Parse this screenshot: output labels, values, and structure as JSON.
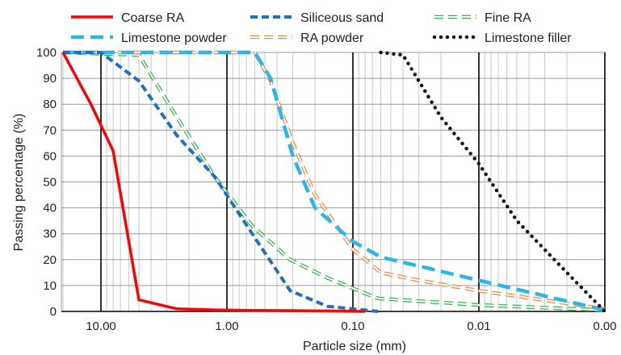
{
  "chart_data": {
    "type": "line",
    "title": "",
    "xlabel": "Particle size (mm)",
    "ylabel": "Passing percentage (%)",
    "x_scale": "log",
    "x_direction": "descending",
    "xlim": [
      20,
      0.001
    ],
    "ylim": [
      0,
      100
    ],
    "x_ticks": [
      10,
      1,
      0.1,
      0.01,
      0.001
    ],
    "x_tick_labels": [
      "10.00",
      "1.00",
      "0.10",
      "0.01",
      "0.00"
    ],
    "y_ticks": [
      0,
      10,
      20,
      30,
      40,
      50,
      60,
      70,
      80,
      90,
      100
    ],
    "y_tick_labels": [
      "0",
      "10",
      "20",
      "30",
      "40",
      "50",
      "60",
      "70",
      "80",
      "90",
      "100"
    ],
    "grid": true,
    "legend_position": "top",
    "series": [
      {
        "name": "Coarse RA",
        "color": "#ff0000",
        "style": "solid",
        "x": [
          20,
          12,
          8,
          5,
          2.5,
          1.25,
          0.63,
          0.315,
          0.16,
          0.08
        ],
        "y": [
          100,
          80,
          62,
          4.5,
          1,
          0.6,
          0.4,
          0.3,
          0.2,
          0
        ]
      },
      {
        "name": "Siliceous sand",
        "color": "#1f6fc4",
        "style": "dash",
        "x": [
          20,
          10,
          5,
          2.5,
          1.25,
          0.63,
          0.315,
          0.16,
          0.08,
          0.063
        ],
        "y": [
          100,
          100,
          89,
          68,
          52,
          30,
          8,
          2,
          0.5,
          0
        ]
      },
      {
        "name": "Fine RA",
        "color": "#2db84a",
        "style": "hollow-dash",
        "x": [
          20,
          5,
          2.5,
          1.25,
          0.63,
          0.315,
          0.16,
          0.08,
          0.063,
          0.01,
          0.001
        ],
        "y": [
          100,
          99,
          75,
          52,
          33,
          20,
          13,
          7,
          5,
          2.5,
          0.5
        ]
      },
      {
        "name": "Limestone powder",
        "color": "#29b6ec",
        "style": "long-dash",
        "x": [
          20,
          0.6,
          0.45,
          0.3,
          0.2,
          0.1,
          0.06,
          0.01,
          0.001
        ],
        "y": [
          100,
          100,
          90,
          60,
          40,
          27,
          21,
          12,
          0.5
        ]
      },
      {
        "name": "RA powder",
        "color": "#f08a3c",
        "style": "hollow-dash",
        "x": [
          20,
          0.6,
          0.45,
          0.3,
          0.2,
          0.1,
          0.06,
          0.03,
          0.01,
          0.001
        ],
        "y": [
          100,
          100,
          89,
          65,
          45,
          24,
          15,
          12,
          8,
          1
        ]
      },
      {
        "name": "Limestone filler",
        "color": "#111111",
        "style": "dot",
        "x": [
          0.06,
          0.04,
          0.02,
          0.01,
          0.005,
          0.002,
          0.001
        ],
        "y": [
          100,
          99,
          75,
          57,
          35,
          15,
          0
        ]
      }
    ]
  }
}
